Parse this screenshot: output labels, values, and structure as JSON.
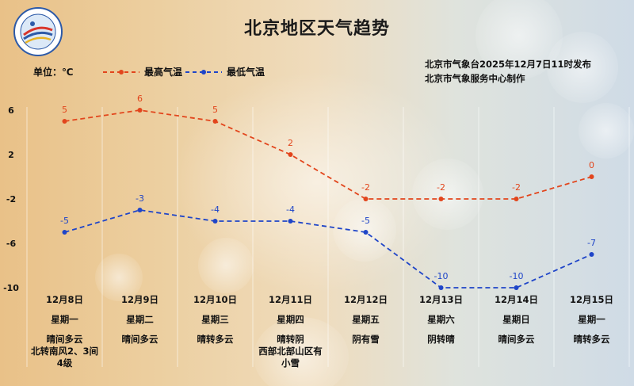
{
  "title": "北京地区天气趋势",
  "unit_label": "单位：℃",
  "publisher": [
    "北京市气象台2025年12月7日11时发布",
    "北京市气象服务中心制作"
  ],
  "colors": {
    "high": "#e2451c",
    "low": "#1f45c8"
  },
  "chart_data": {
    "type": "line",
    "categories": [
      "12月8日",
      "12月9日",
      "12月10日",
      "12月11日",
      "12月12日",
      "12月13日",
      "12月14日",
      "12月15日"
    ],
    "series": [
      {
        "name": "最高气温",
        "values": [
          5,
          6,
          5,
          2,
          -2,
          -2,
          -2,
          0
        ]
      },
      {
        "name": "最低气温",
        "values": [
          -5,
          -3,
          -4,
          -4,
          -5,
          -10,
          -10,
          -7
        ]
      }
    ],
    "yticks": [
      6,
      2,
      -2,
      -6,
      -10
    ],
    "ylim": [
      -10,
      6
    ]
  },
  "days": [
    {
      "date": "12月8日",
      "weekday": "星期一",
      "weather": "晴间多云\n北转南风2、3间\n4级"
    },
    {
      "date": "12月9日",
      "weekday": "星期二",
      "weather": "晴间多云"
    },
    {
      "date": "12月10日",
      "weekday": "星期三",
      "weather": "晴转多云"
    },
    {
      "date": "12月11日",
      "weekday": "星期四",
      "weather": "晴转阴\n西部北部山区有\n小雪"
    },
    {
      "date": "12月12日",
      "weekday": "星期五",
      "weather": "阴有雪"
    },
    {
      "date": "12月13日",
      "weekday": "星期六",
      "weather": "阴转晴"
    },
    {
      "date": "12月14日",
      "weekday": "星期日",
      "weather": "晴间多云"
    },
    {
      "date": "12月15日",
      "weekday": "星期一",
      "weather": "晴转多云"
    }
  ]
}
